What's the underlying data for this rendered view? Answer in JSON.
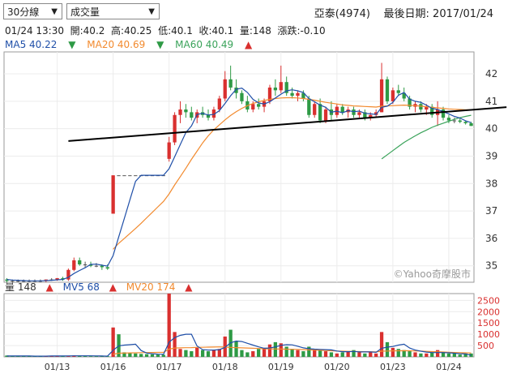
{
  "controls": {
    "interval": {
      "value": "30分線"
    },
    "indicator": {
      "value": "成交量"
    }
  },
  "header": {
    "stock": "亞泰(4974)",
    "date_label": "最後日期: 2017/01/24"
  },
  "quote": {
    "datetime": "01/24 13:30",
    "open": "開:40.2",
    "high": "高:40.25",
    "low": "低:40.1",
    "close": "收:40.1",
    "volume": "量:148",
    "change": "漲跌:-0.10"
  },
  "ma_legend": [
    {
      "label": "MA5 40.22",
      "dir": "▼",
      "color": "#1f4fa8"
    },
    {
      "label": "MA20 40.69",
      "dir": "▼",
      "color": "#f28a2e"
    },
    {
      "label": "MA60 40.49",
      "dir": "▲",
      "color": "#3aa35a"
    }
  ],
  "vol_legend": [
    {
      "label": "量 148",
      "dir": "▲",
      "color": "#333333"
    },
    {
      "label": "MV5 68",
      "dir": "▲",
      "color": "#1f4fa8"
    },
    {
      "label": "MV20 174",
      "dir": "▲",
      "color": "#f28a2e"
    }
  ],
  "watermark": "©Yahoo奇摩股市",
  "chart_data": {
    "type": "candlestick",
    "price_ylim": [
      34.4,
      42.8
    ],
    "price_ticks": [
      "35",
      "36",
      "37",
      "38",
      "39",
      "40",
      "41",
      "42"
    ],
    "volume_ylim": [
      0,
      2800
    ],
    "volume_ticks": [
      "500",
      "1000",
      "1500",
      "2000",
      "2500"
    ],
    "date_labels": [
      {
        "text": "01/13",
        "idx": 9
      },
      {
        "text": "01/16",
        "idx": 19
      },
      {
        "text": "01/17",
        "idx": 29
      },
      {
        "text": "01/18",
        "idx": 39
      },
      {
        "text": "01/19",
        "idx": 49
      },
      {
        "text": "01/20",
        "idx": 59
      },
      {
        "text": "01/23",
        "idx": 69
      },
      {
        "text": "01/24",
        "idx": 79
      }
    ],
    "colors": {
      "up": "#d9302f",
      "down": "#2e9a45",
      "flat": "#555555",
      "ma5": "#1f4fa8",
      "ma20": "#f28a2e",
      "ma60": "#3aa35a",
      "trend": "#000000"
    },
    "candles": [
      [
        34.5,
        34.55,
        34.4,
        34.45
      ],
      [
        34.45,
        34.5,
        34.4,
        34.45
      ],
      [
        34.45,
        34.5,
        34.4,
        34.45
      ],
      [
        34.45,
        34.5,
        34.4,
        34.45
      ],
      [
        34.45,
        34.5,
        34.4,
        34.45
      ],
      [
        34.45,
        34.5,
        34.4,
        34.45
      ],
      [
        34.45,
        34.5,
        34.4,
        34.45
      ],
      [
        34.45,
        34.5,
        34.4,
        34.5
      ],
      [
        34.5,
        34.55,
        34.45,
        34.5
      ],
      [
        34.5,
        34.55,
        34.45,
        34.55
      ],
      [
        34.55,
        34.6,
        34.45,
        34.5
      ],
      [
        34.5,
        34.9,
        34.45,
        34.85
      ],
      [
        34.85,
        35.3,
        34.8,
        35.2
      ],
      [
        35.2,
        35.3,
        35.0,
        35.05
      ],
      [
        35.05,
        35.15,
        34.95,
        35.05
      ],
      [
        35.05,
        35.15,
        34.95,
        35.0
      ],
      [
        35.0,
        35.1,
        34.95,
        35.0
      ],
      [
        35.0,
        35.05,
        34.85,
        34.95
      ],
      [
        34.95,
        35.05,
        34.85,
        34.9
      ],
      [
        36.9,
        38.3,
        36.9,
        38.3
      ],
      [
        38.3,
        38.3,
        38.3,
        38.3
      ],
      [
        38.3,
        38.3,
        38.3,
        38.3
      ],
      [
        38.3,
        38.3,
        38.3,
        38.3
      ],
      [
        38.3,
        38.3,
        38.3,
        38.3
      ],
      [
        38.3,
        38.3,
        38.3,
        38.3
      ],
      [
        38.3,
        38.3,
        38.3,
        38.3
      ],
      [
        38.3,
        38.3,
        38.3,
        38.3
      ],
      [
        38.3,
        38.3,
        38.3,
        38.3
      ],
      [
        38.3,
        38.3,
        38.3,
        38.3
      ],
      [
        38.9,
        39.7,
        38.8,
        39.5
      ],
      [
        39.5,
        40.6,
        39.4,
        40.5
      ],
      [
        40.5,
        41.0,
        40.2,
        40.7
      ],
      [
        40.7,
        40.9,
        40.4,
        40.6
      ],
      [
        40.6,
        40.8,
        40.3,
        40.4
      ],
      [
        40.4,
        40.7,
        40.2,
        40.6
      ],
      [
        40.6,
        40.8,
        40.4,
        40.5
      ],
      [
        40.5,
        40.7,
        40.3,
        40.4
      ],
      [
        40.4,
        40.8,
        40.3,
        40.7
      ],
      [
        40.7,
        41.2,
        40.6,
        41.1
      ],
      [
        41.1,
        42.1,
        41.0,
        41.8
      ],
      [
        41.8,
        42.3,
        41.4,
        41.5
      ],
      [
        41.5,
        41.8,
        41.1,
        41.3
      ],
      [
        41.3,
        41.4,
        40.9,
        41.0
      ],
      [
        41.0,
        41.2,
        40.6,
        40.7
      ],
      [
        40.7,
        41.0,
        40.6,
        40.9
      ],
      [
        40.9,
        41.1,
        40.7,
        40.8
      ],
      [
        40.8,
        41.1,
        40.6,
        41.0
      ],
      [
        41.0,
        41.6,
        40.9,
        41.5
      ],
      [
        41.5,
        41.8,
        41.2,
        41.4
      ],
      [
        41.4,
        42.3,
        41.3,
        41.7
      ],
      [
        41.7,
        41.9,
        41.2,
        41.3
      ],
      [
        41.3,
        41.5,
        41.1,
        41.2
      ],
      [
        41.2,
        41.4,
        41.0,
        41.3
      ],
      [
        41.3,
        41.4,
        41.0,
        41.1
      ],
      [
        41.1,
        41.2,
        40.4,
        40.5
      ],
      [
        40.5,
        41.0,
        40.4,
        40.9
      ],
      [
        40.9,
        41.1,
        40.2,
        40.3
      ],
      [
        40.3,
        40.8,
        40.2,
        40.7
      ],
      [
        40.7,
        41.0,
        40.3,
        40.5
      ],
      [
        40.5,
        40.9,
        40.4,
        40.8
      ],
      [
        40.8,
        40.9,
        40.5,
        40.6
      ],
      [
        40.6,
        40.8,
        40.4,
        40.7
      ],
      [
        40.7,
        40.8,
        40.4,
        40.5
      ],
      [
        40.5,
        40.7,
        40.4,
        40.6
      ],
      [
        40.6,
        40.7,
        40.3,
        40.4
      ],
      [
        40.4,
        40.6,
        40.3,
        40.5
      ],
      [
        40.5,
        40.7,
        40.4,
        40.6
      ],
      [
        40.6,
        42.4,
        40.6,
        41.8
      ],
      [
        41.8,
        41.9,
        40.9,
        41.0
      ],
      [
        41.0,
        41.5,
        40.9,
        41.4
      ],
      [
        41.4,
        41.6,
        41.2,
        41.3
      ],
      [
        41.3,
        41.5,
        41.0,
        41.1
      ],
      [
        41.1,
        41.2,
        40.7,
        40.8
      ],
      [
        40.8,
        41.0,
        40.6,
        40.9
      ],
      [
        40.9,
        41.0,
        40.6,
        40.7
      ],
      [
        40.7,
        40.9,
        40.5,
        40.8
      ],
      [
        40.8,
        40.9,
        40.4,
        40.5
      ],
      [
        40.5,
        41.0,
        40.1,
        40.7
      ],
      [
        40.7,
        40.8,
        40.3,
        40.4
      ],
      [
        40.4,
        40.5,
        40.2,
        40.3
      ],
      [
        40.3,
        40.4,
        40.2,
        40.3
      ],
      [
        40.3,
        40.4,
        40.2,
        40.25
      ],
      [
        40.25,
        40.3,
        40.15,
        40.2
      ],
      [
        40.2,
        40.25,
        40.1,
        40.1
      ]
    ],
    "ma5": [
      34.5,
      34.48,
      34.47,
      34.46,
      34.45,
      34.45,
      34.45,
      34.46,
      34.47,
      34.49,
      34.5,
      34.58,
      34.72,
      34.83,
      34.93,
      35.05,
      35.06,
      35.02,
      34.99,
      35.37,
      36.05,
      36.73,
      37.41,
      38.08,
      38.3,
      38.3,
      38.3,
      38.3,
      38.3,
      38.54,
      38.98,
      39.42,
      39.86,
      40.1,
      40.52,
      40.56,
      40.5,
      40.52,
      40.66,
      40.92,
      41.2,
      41.44,
      41.48,
      41.32,
      41.07,
      40.94,
      40.9,
      40.98,
      41.12,
      41.26,
      41.38,
      41.42,
      41.38,
      41.32,
      41.1,
      40.98,
      40.86,
      40.78,
      40.6,
      40.64,
      40.58,
      40.66,
      40.62,
      40.64,
      40.56,
      40.54,
      40.52,
      40.78,
      40.82,
      40.96,
      41.22,
      41.32,
      41.08,
      41.0,
      40.96,
      40.86,
      40.74,
      40.7,
      40.62,
      40.54,
      40.45,
      40.39,
      40.29,
      40.22
    ],
    "ma20": [
      null,
      null,
      null,
      null,
      null,
      null,
      null,
      null,
      null,
      null,
      null,
      null,
      null,
      null,
      null,
      null,
      null,
      null,
      null,
      35.6,
      35.82,
      36.0,
      36.18,
      36.36,
      36.55,
      36.75,
      36.95,
      37.15,
      37.35,
      37.62,
      37.95,
      38.25,
      38.56,
      38.88,
      39.18,
      39.48,
      39.74,
      39.96,
      40.14,
      40.32,
      40.48,
      40.62,
      40.74,
      40.84,
      40.92,
      40.98,
      41.03,
      41.07,
      41.1,
      41.12,
      41.13,
      41.13,
      41.12,
      41.1,
      41.07,
      41.04,
      41.0,
      40.96,
      40.93,
      40.9,
      40.87,
      40.85,
      40.83,
      40.82,
      40.81,
      40.8,
      40.79,
      40.82,
      40.83,
      40.84,
      40.85,
      40.86,
      40.85,
      40.84,
      40.82,
      40.8,
      40.78,
      40.76,
      40.74,
      40.72,
      40.71,
      40.7,
      40.69,
      40.69
    ],
    "ma60": [
      null,
      null,
      null,
      null,
      null,
      null,
      null,
      null,
      null,
      null,
      null,
      null,
      null,
      null,
      null,
      null,
      null,
      null,
      null,
      null,
      null,
      null,
      null,
      null,
      null,
      null,
      null,
      null,
      null,
      null,
      null,
      null,
      null,
      null,
      null,
      null,
      null,
      null,
      null,
      null,
      null,
      null,
      null,
      null,
      null,
      null,
      null,
      null,
      null,
      null,
      null,
      null,
      null,
      null,
      null,
      null,
      null,
      null,
      null,
      null,
      null,
      null,
      null,
      null,
      null,
      null,
      null,
      38.9,
      39.05,
      39.2,
      39.35,
      39.5,
      39.62,
      39.74,
      39.85,
      39.95,
      40.05,
      40.13,
      40.2,
      40.27,
      40.34,
      40.4,
      40.45,
      40.49
    ],
    "trendline": {
      "from": {
        "idx": 11,
        "price": 39.55
      },
      "to": {
        "idx": 87,
        "price": 40.75
      }
    },
    "volume": [
      60,
      40,
      30,
      30,
      30,
      30,
      40,
      40,
      50,
      40,
      30,
      50,
      60,
      50,
      40,
      30,
      30,
      30,
      30,
      1300,
      1000,
      200,
      180,
      150,
      130,
      120,
      110,
      100,
      90,
      2800,
      1100,
      350,
      300,
      250,
      400,
      300,
      250,
      300,
      350,
      900,
      1200,
      700,
      300,
      200,
      250,
      350,
      400,
      550,
      650,
      600,
      450,
      350,
      300,
      250,
      450,
      350,
      300,
      250,
      200,
      150,
      200,
      250,
      300,
      200,
      150,
      200,
      150,
      1100,
      650,
      400,
      350,
      300,
      250,
      200,
      150,
      150,
      200,
      300,
      200,
      150,
      150,
      100,
      150,
      148
    ],
    "vol_up": [
      false,
      false,
      false,
      false,
      false,
      false,
      false,
      true,
      true,
      true,
      false,
      true,
      true,
      false,
      false,
      false,
      false,
      false,
      false,
      true,
      false,
      false,
      false,
      false,
      false,
      false,
      false,
      false,
      false,
      true,
      true,
      true,
      false,
      false,
      true,
      false,
      false,
      true,
      true,
      true,
      false,
      false,
      false,
      false,
      true,
      false,
      true,
      true,
      false,
      true,
      false,
      false,
      true,
      false,
      false,
      true,
      false,
      true,
      false,
      true,
      false,
      true,
      false,
      true,
      false,
      true,
      true,
      true,
      false,
      true,
      false,
      false,
      false,
      true,
      false,
      true,
      false,
      true,
      false,
      false,
      false,
      false,
      false,
      false
    ],
    "mv5": [
      40,
      40,
      40,
      40,
      38,
      34,
      32,
      34,
      38,
      40,
      40,
      42,
      46,
      46,
      46,
      46,
      44,
      38,
      34,
      290,
      490,
      520,
      540,
      560,
      280,
      170,
      140,
      120,
      110,
      650,
      850,
      950,
      1000,
      1000,
      480,
      320,
      300,
      300,
      320,
      420,
      620,
      700,
      680,
      600,
      520,
      440,
      380,
      390,
      440,
      510,
      540,
      530,
      470,
      400,
      360,
      340,
      330,
      320,
      310,
      260,
      230,
      230,
      240,
      220,
      220,
      220,
      200,
      380,
      430,
      460,
      520,
      560,
      390,
      300,
      250,
      210,
      190,
      190,
      190,
      180,
      160,
      140,
      130,
      68
    ],
    "mv20": [
      null,
      null,
      null,
      null,
      null,
      null,
      null,
      null,
      null,
      null,
      null,
      null,
      null,
      null,
      null,
      null,
      null,
      null,
      null,
      110,
      160,
      170,
      175,
      180,
      185,
      190,
      195,
      198,
      200,
      340,
      390,
      400,
      405,
      410,
      420,
      425,
      430,
      435,
      440,
      430,
      420,
      410,
      400,
      390,
      380,
      370,
      360,
      355,
      350,
      345,
      340,
      335,
      330,
      320,
      310,
      300,
      290,
      280,
      270,
      260,
      250,
      245,
      240,
      235,
      230,
      225,
      220,
      250,
      260,
      265,
      270,
      272,
      268,
      262,
      255,
      245,
      235,
      225,
      215,
      205,
      195,
      185,
      178,
      174
    ]
  }
}
